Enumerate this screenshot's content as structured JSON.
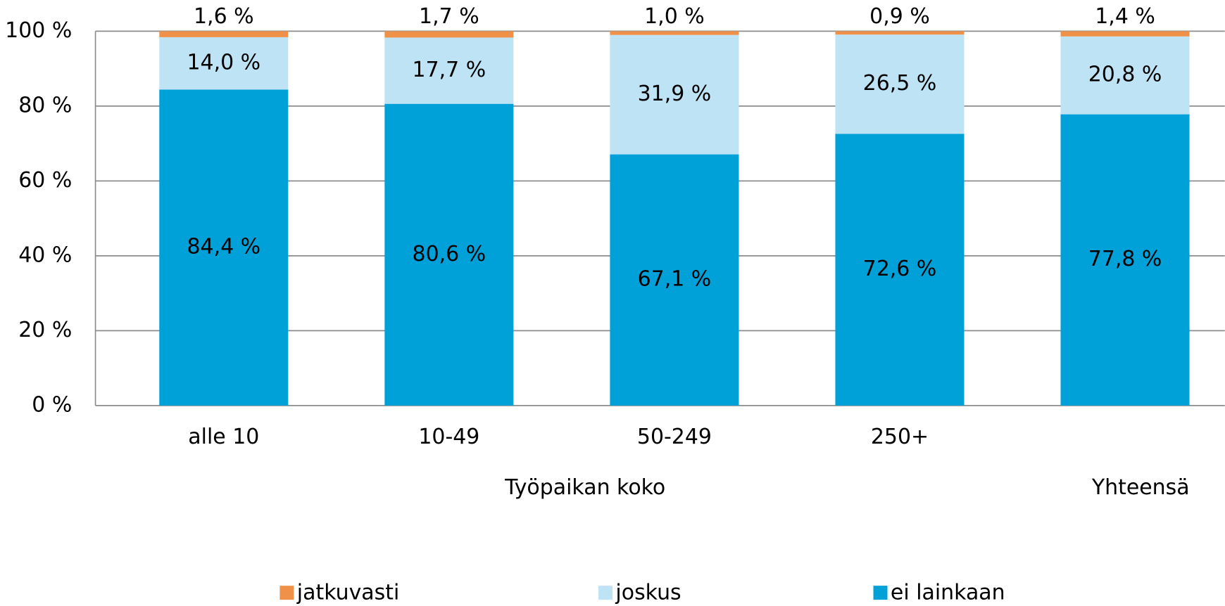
{
  "chart_data": {
    "type": "stacked_bar",
    "categories": [
      "alle 10",
      "10-49",
      "50-249",
      "250+",
      null
    ],
    "groups": [
      {
        "name": "Työpaikan koko",
        "count": 4
      },
      {
        "name": "Yhteensä",
        "count": 1
      }
    ],
    "series": [
      {
        "name": "ei lainkaan",
        "color": "#00a0d8",
        "values": [
          84.4,
          80.6,
          67.1,
          72.6,
          77.8
        ],
        "value_labels": [
          "84,4 %",
          "80,6 %",
          "67,1 %",
          "72,6 %",
          "77,8 %"
        ]
      },
      {
        "name": "joskus",
        "color": "#bde3f5",
        "values": [
          14.0,
          17.7,
          31.9,
          26.5,
          20.8
        ],
        "value_labels": [
          "14,0 %",
          "17,7 %",
          "31,9 %",
          "26,5 %",
          "20,8 %"
        ]
      },
      {
        "name": "jatkuvasti",
        "color": "#f0914a",
        "values": [
          1.6,
          1.7,
          1.0,
          0.9,
          1.4
        ],
        "value_labels": [
          "1,6 %",
          "1,7 %",
          "1,0 %",
          "0,9 %",
          "1,4 %"
        ]
      }
    ],
    "ylim": [
      0,
      100
    ],
    "yticks": [
      {
        "value": 0,
        "label": "0 %"
      },
      {
        "value": 20,
        "label": "20 %"
      },
      {
        "value": 40,
        "label": "40 %"
      },
      {
        "value": 60,
        "label": "60 %"
      },
      {
        "value": 80,
        "label": "80 %"
      },
      {
        "value": 100,
        "label": "100 %"
      }
    ],
    "grid": true
  }
}
